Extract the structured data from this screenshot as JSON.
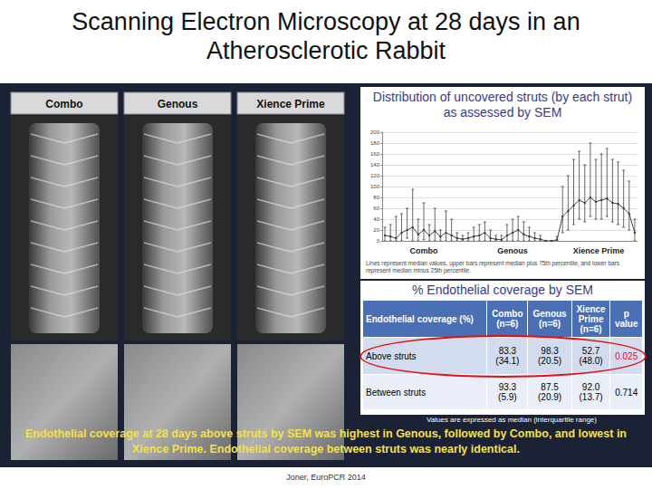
{
  "title": "Scanning Electron Microscopy at 28 days in an Atherosclerotic Rabbit",
  "panels": [
    "Combo",
    "Genous",
    "Xience Prime"
  ],
  "chart_data": {
    "type": "line",
    "title": "Distribution of uncovered struts (by each strut) as assessed by SEM",
    "note": "Lines represent median values, upper bars represent median plus 75th percentile, and lower bars represent median minus 25th percentile.",
    "groups": [
      {
        "name": "Combo",
        "values": [
          10,
          8,
          5,
          15,
          20,
          25,
          12,
          20,
          10,
          18,
          8,
          15,
          10,
          5,
          3
        ],
        "upper": [
          25,
          30,
          45,
          50,
          60,
          95,
          40,
          70,
          30,
          60,
          20,
          55,
          40,
          15,
          10
        ],
        "lower": [
          0,
          0,
          0,
          0,
          5,
          0,
          0,
          2,
          0,
          0,
          0,
          0,
          0,
          0,
          0
        ]
      },
      {
        "name": "Genous",
        "values": [
          5,
          8,
          10,
          15,
          5,
          3,
          2,
          10,
          15,
          20,
          12,
          8,
          5,
          3,
          0,
          0,
          2
        ],
        "upper": [
          15,
          25,
          30,
          35,
          20,
          10,
          10,
          30,
          40,
          45,
          35,
          25,
          15,
          10,
          0,
          0,
          8
        ],
        "lower": [
          0,
          0,
          0,
          0,
          0,
          0,
          0,
          0,
          0,
          0,
          0,
          0,
          0,
          0,
          0,
          0,
          0
        ]
      },
      {
        "name": "Xience Prime",
        "values": [
          45,
          55,
          65,
          75,
          70,
          80,
          72,
          75,
          78,
          70,
          68,
          60,
          50,
          15
        ],
        "upper": [
          100,
          120,
          150,
          165,
          140,
          180,
          150,
          160,
          170,
          150,
          145,
          130,
          110,
          40
        ],
        "lower": [
          15,
          20,
          30,
          40,
          35,
          45,
          40,
          40,
          45,
          35,
          30,
          25,
          20,
          0
        ]
      }
    ],
    "color": "#404040",
    "marker": "circle",
    "ylim": [
      0,
      200
    ],
    "yticks": [
      0,
      20,
      40,
      60,
      80,
      100,
      120,
      140,
      160,
      180,
      200
    ],
    "grid": true,
    "tick_labels": "y"
  },
  "table": {
    "title": "% Endothelial coverage by SEM",
    "header": [
      "Endothelial coverage (%)",
      "Combo\n(n=6)",
      "Genous\n(n=6)",
      "Xience\nPrime\n(n=6)",
      "p\nvalue"
    ],
    "rows": [
      [
        "Above struts",
        "83.3\n(34.1)",
        "98.3\n(20.5)",
        "52.7\n(48.0)",
        "0.025"
      ],
      [
        "Between struts",
        "93.3\n(5.9)",
        "87.5\n(20.9)",
        "92.0\n(13.7)",
        "0.714"
      ]
    ],
    "highlight": "Above struts",
    "note": "Values are expressed as median (interquartile range)"
  },
  "conclusion": "Endothelial coverage at 28 days above struts by SEM was highest in Genous, followed by Combo, and lowest in Xience Prime. Endothelial coverage between struts was nearly identical.",
  "footer": "Joner, EuroPCR 2014"
}
